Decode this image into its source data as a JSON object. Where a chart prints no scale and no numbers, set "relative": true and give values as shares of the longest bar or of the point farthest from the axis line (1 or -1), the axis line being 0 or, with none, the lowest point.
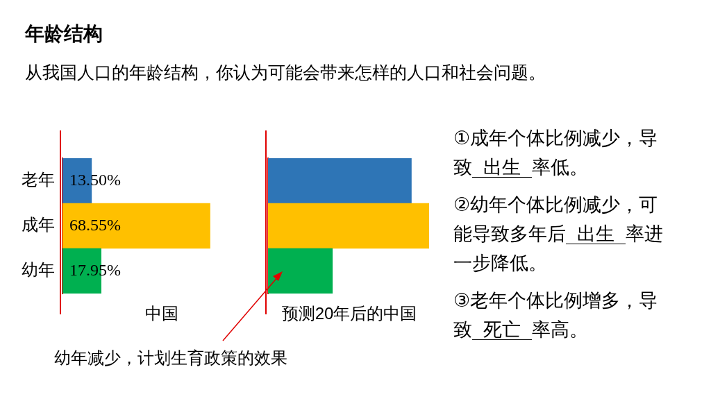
{
  "chart_data": [
    {
      "type": "bar",
      "title": "年龄结构",
      "subtitle": "从我国人口的年龄结构，你认为可能会带来怎样的人口和社会问题。",
      "xlabel": "中国",
      "orientation": "horizontal",
      "categories": [
        "老年",
        "成年",
        "幼年"
      ],
      "values": [
        13.5,
        68.55,
        17.95
      ],
      "colors": [
        "#2e75b6",
        "#ffc000",
        "#00b050"
      ],
      "value_labels": [
        "13.50%",
        "68.55%",
        "17.95%"
      ],
      "tick_labels": "y",
      "legend": false
    },
    {
      "type": "bar",
      "xlabel": "预测20年后的中国",
      "orientation": "horizontal",
      "relative": true,
      "categories": [
        null,
        null,
        null
      ],
      "values": [
        0.89,
        1,
        0.4
      ],
      "colors": [
        "#2e75b6",
        "#ffc000",
        "#00b050"
      ],
      "tick_labels": false,
      "legend": false,
      "annotations": [
        "幼年减少，计划生育政策的效果"
      ]
    },
    {
      "type": "other",
      "annotations": [
        "①成年个体比例减少，导致",
        "出生",
        "率低。",
        "②幼年个体比例减少，可能导致多年后",
        "出生",
        "率进一步降低。",
        "③老年个体比例增多，导致",
        "死亡",
        "率高。"
      ]
    }
  ]
}
